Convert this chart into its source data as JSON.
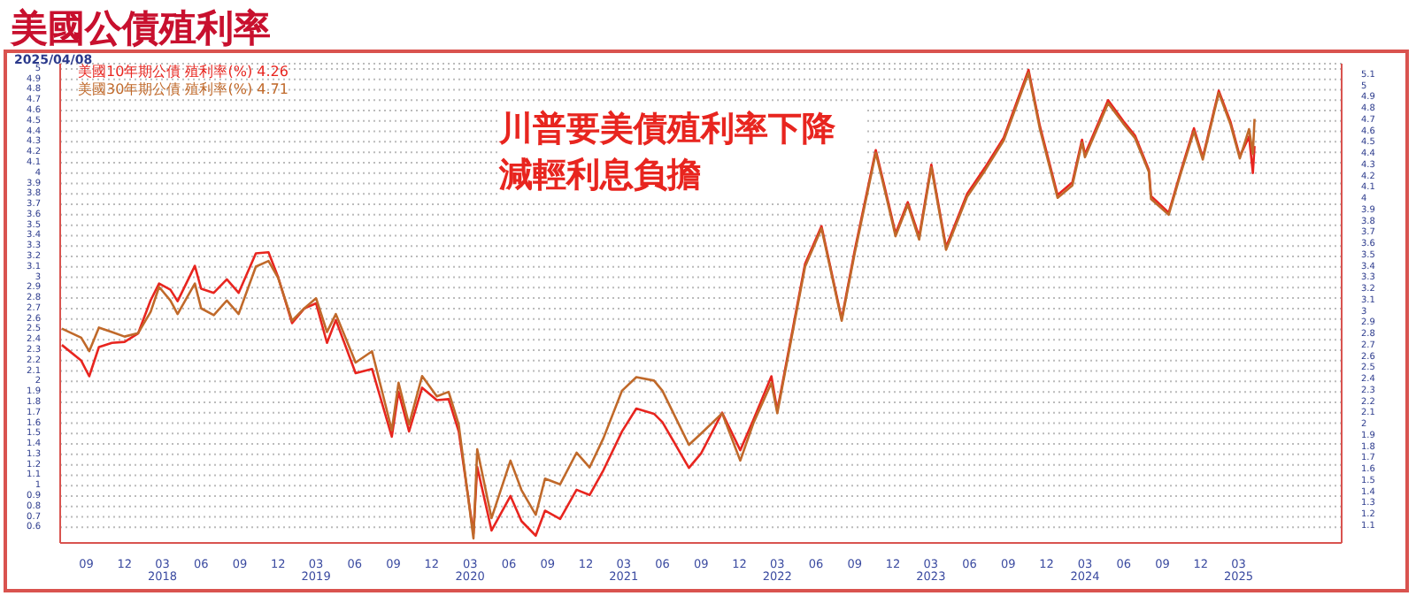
{
  "chart_data": {
    "type": "line",
    "title": "美國公債殖利率",
    "annotations": [
      "2025/04/08",
      "川普要美債殖利率下降減輕利息負擔"
    ],
    "x": [
      "2017-07-05",
      "2017-08-20",
      "2017-09-08",
      "2017-10-01",
      "2017-11-01",
      "2017-12-01",
      "2018-01-02",
      "2018-02-01",
      "2018-02-21",
      "2018-03-20",
      "2018-04-06",
      "2018-05-17",
      "2018-06-01",
      "2018-07-01",
      "2018-08-01",
      "2018-08-29",
      "2018-10-09",
      "2018-11-08",
      "2018-12-01",
      "2019-01-03",
      "2019-02-01",
      "2019-03-01",
      "2019-03-27",
      "2019-04-17",
      "2019-06-03",
      "2019-07-12",
      "2019-08-28",
      "2019-09-13",
      "2019-10-08",
      "2019-11-08",
      "2019-12-13",
      "2020-01-10",
      "2020-02-03",
      "2020-03-09",
      "2020-03-18",
      "2020-04-21",
      "2020-06-05",
      "2020-07-01",
      "2020-08-04",
      "2020-08-26",
      "2020-10-01",
      "2020-11-09",
      "2020-12-10",
      "2021-01-12",
      "2021-02-25",
      "2021-03-31",
      "2021-05-12",
      "2021-06-01",
      "2021-08-03",
      "2021-09-01",
      "2021-10-21",
      "2021-12-03",
      "2022-01-03",
      "2022-02-15",
      "2022-03-01",
      "2022-05-06",
      "2022-06-14",
      "2022-08-01",
      "2022-09-01",
      "2022-10-21",
      "2022-11-15",
      "2022-12-07",
      "2023-01-05",
      "2023-02-01",
      "2023-03-02",
      "2023-04-06",
      "2023-05-26",
      "2023-07-07",
      "2023-08-21",
      "2023-10-19",
      "2023-11-15",
      "2023-12-27",
      "2024-01-31",
      "2024-02-23",
      "2024-03-01",
      "2024-04-25",
      "2024-05-31",
      "2024-06-28",
      "2024-07-31",
      "2024-08-05",
      "2024-09-16",
      "2024-10-15",
      "2024-11-15",
      "2024-12-06",
      "2025-01-13",
      "2025-02-10",
      "2025-03-04",
      "2025-03-26",
      "2025-04-04",
      "2025-04-08"
    ],
    "series": [
      {
        "name": "美國10年期公債 殖利率(%) 4.26",
        "color": "#e8251f",
        "values": [
          2.35,
          2.2,
          2.05,
          2.33,
          2.37,
          2.38,
          2.46,
          2.78,
          2.94,
          2.88,
          2.77,
          3.11,
          2.89,
          2.85,
          2.98,
          2.85,
          3.23,
          3.24,
          3.0,
          2.56,
          2.7,
          2.75,
          2.37,
          2.59,
          2.08,
          2.12,
          1.47,
          1.9,
          1.52,
          1.94,
          1.82,
          1.83,
          1.52,
          0.54,
          1.18,
          0.57,
          0.9,
          0.66,
          0.52,
          0.76,
          0.68,
          0.96,
          0.91,
          1.15,
          1.52,
          1.74,
          1.69,
          1.61,
          1.17,
          1.31,
          1.7,
          1.34,
          1.63,
          2.05,
          1.72,
          3.13,
          3.49,
          2.6,
          3.26,
          4.22,
          3.8,
          3.42,
          3.72,
          3.39,
          4.08,
          3.29,
          3.8,
          4.05,
          4.34,
          4.99,
          4.45,
          3.79,
          3.91,
          4.32,
          4.18,
          4.7,
          4.5,
          4.36,
          4.03,
          3.78,
          3.62,
          4.02,
          4.43,
          4.15,
          4.79,
          4.49,
          4.16,
          4.35,
          4.0,
          4.26
        ]
      },
      {
        "name": "美國30年期公債 殖利率(%) 4.71",
        "color": "#c0692a",
        "axis": "y2",
        "values": [
          2.85,
          2.77,
          2.65,
          2.86,
          2.82,
          2.78,
          2.81,
          3.0,
          3.22,
          3.1,
          2.98,
          3.25,
          3.03,
          2.97,
          3.1,
          2.98,
          3.4,
          3.45,
          3.3,
          2.92,
          3.03,
          3.12,
          2.82,
          2.98,
          2.55,
          2.65,
          1.95,
          2.37,
          2.0,
          2.43,
          2.25,
          2.29,
          2.0,
          0.99,
          1.78,
          1.17,
          1.68,
          1.42,
          1.2,
          1.52,
          1.47,
          1.75,
          1.62,
          1.88,
          2.3,
          2.42,
          2.39,
          2.3,
          1.82,
          1.92,
          2.1,
          1.68,
          2.01,
          2.37,
          2.1,
          3.4,
          3.74,
          2.92,
          3.52,
          4.41,
          4.02,
          3.67,
          3.95,
          3.64,
          4.28,
          3.55,
          4.02,
          4.25,
          4.52,
          5.12,
          4.62,
          4.01,
          4.12,
          4.5,
          4.37,
          4.85,
          4.67,
          4.54,
          4.24,
          4.0,
          3.86,
          4.23,
          4.6,
          4.35,
          4.94,
          4.66,
          4.36,
          4.62,
          4.4,
          4.71
        ]
      }
    ],
    "xlim": [
      "2017-07-01",
      "2025-11-01"
    ],
    "xticks": [
      {
        "value": "2017-09",
        "label": "09"
      },
      {
        "value": "2017-12",
        "label": "12"
      },
      {
        "value": "2018-03",
        "label": "03\n2018"
      },
      {
        "value": "2018-06",
        "label": "06"
      },
      {
        "value": "2018-09",
        "label": "09"
      },
      {
        "value": "2018-12",
        "label": "12"
      },
      {
        "value": "2019-03",
        "label": "03\n2019"
      },
      {
        "value": "2019-06",
        "label": "06"
      },
      {
        "value": "2019-09",
        "label": "09"
      },
      {
        "value": "2019-12",
        "label": "12"
      },
      {
        "value": "2020-03",
        "label": "03\n2020"
      },
      {
        "value": "2020-06",
        "label": "06"
      },
      {
        "value": "2020-09",
        "label": "09"
      },
      {
        "value": "2020-12",
        "label": "12"
      },
      {
        "value": "2021-03",
        "label": "03\n2021"
      },
      {
        "value": "2021-06",
        "label": "06"
      },
      {
        "value": "2021-09",
        "label": "09"
      },
      {
        "value": "2021-12",
        "label": "12"
      },
      {
        "value": "2022-03",
        "label": "03\n2022"
      },
      {
        "value": "2022-06",
        "label": "06"
      },
      {
        "value": "2022-09",
        "label": "09"
      },
      {
        "value": "2022-12",
        "label": "12"
      },
      {
        "value": "2023-03",
        "label": "03\n2023"
      },
      {
        "value": "2023-06",
        "label": "06"
      },
      {
        "value": "2023-09",
        "label": "09"
      },
      {
        "value": "2023-12",
        "label": "12"
      },
      {
        "value": "2024-03",
        "label": "03\n2024"
      },
      {
        "value": "2024-06",
        "label": "06"
      },
      {
        "value": "2024-09",
        "label": "09"
      },
      {
        "value": "2024-12",
        "label": "12"
      },
      {
        "value": "2025-03",
        "label": "03\n2025"
      }
    ],
    "ylim": [
      0.45,
      5.05
    ],
    "yticks": [
      0.6,
      0.7,
      0.8,
      0.9,
      1,
      1.1,
      1.2,
      1.3,
      1.4,
      1.5,
      1.6,
      1.7,
      1.8,
      1.9,
      2,
      2.1,
      2.2,
      2.3,
      2.4,
      2.5,
      2.6,
      2.7,
      2.8,
      2.9,
      3,
      3.1,
      3.2,
      3.3,
      3.4,
      3.5,
      3.6,
      3.7,
      3.8,
      3.9,
      4,
      4.1,
      4.2,
      4.3,
      4.4,
      4.5,
      4.6,
      4.7,
      4.8,
      4.9,
      5
    ],
    "y2lim": [
      0.95,
      5.2
    ],
    "y2ticks": [
      1.1,
      1.2,
      1.3,
      1.4,
      1.5,
      1.6,
      1.7,
      1.8,
      1.9,
      2,
      2.1,
      2.2,
      2.3,
      2.4,
      2.5,
      2.6,
      2.7,
      2.8,
      2.9,
      3,
      3.1,
      3.2,
      3.3,
      3.4,
      3.5,
      3.6,
      3.7,
      3.8,
      3.9,
      4,
      4.1,
      4.2,
      4.3,
      4.4,
      4.5,
      4.6,
      4.7,
      4.8,
      4.9,
      5,
      5.1
    ],
    "grid": "y",
    "legend": "top left",
    "marker": "none",
    "line_style": "solid"
  }
}
